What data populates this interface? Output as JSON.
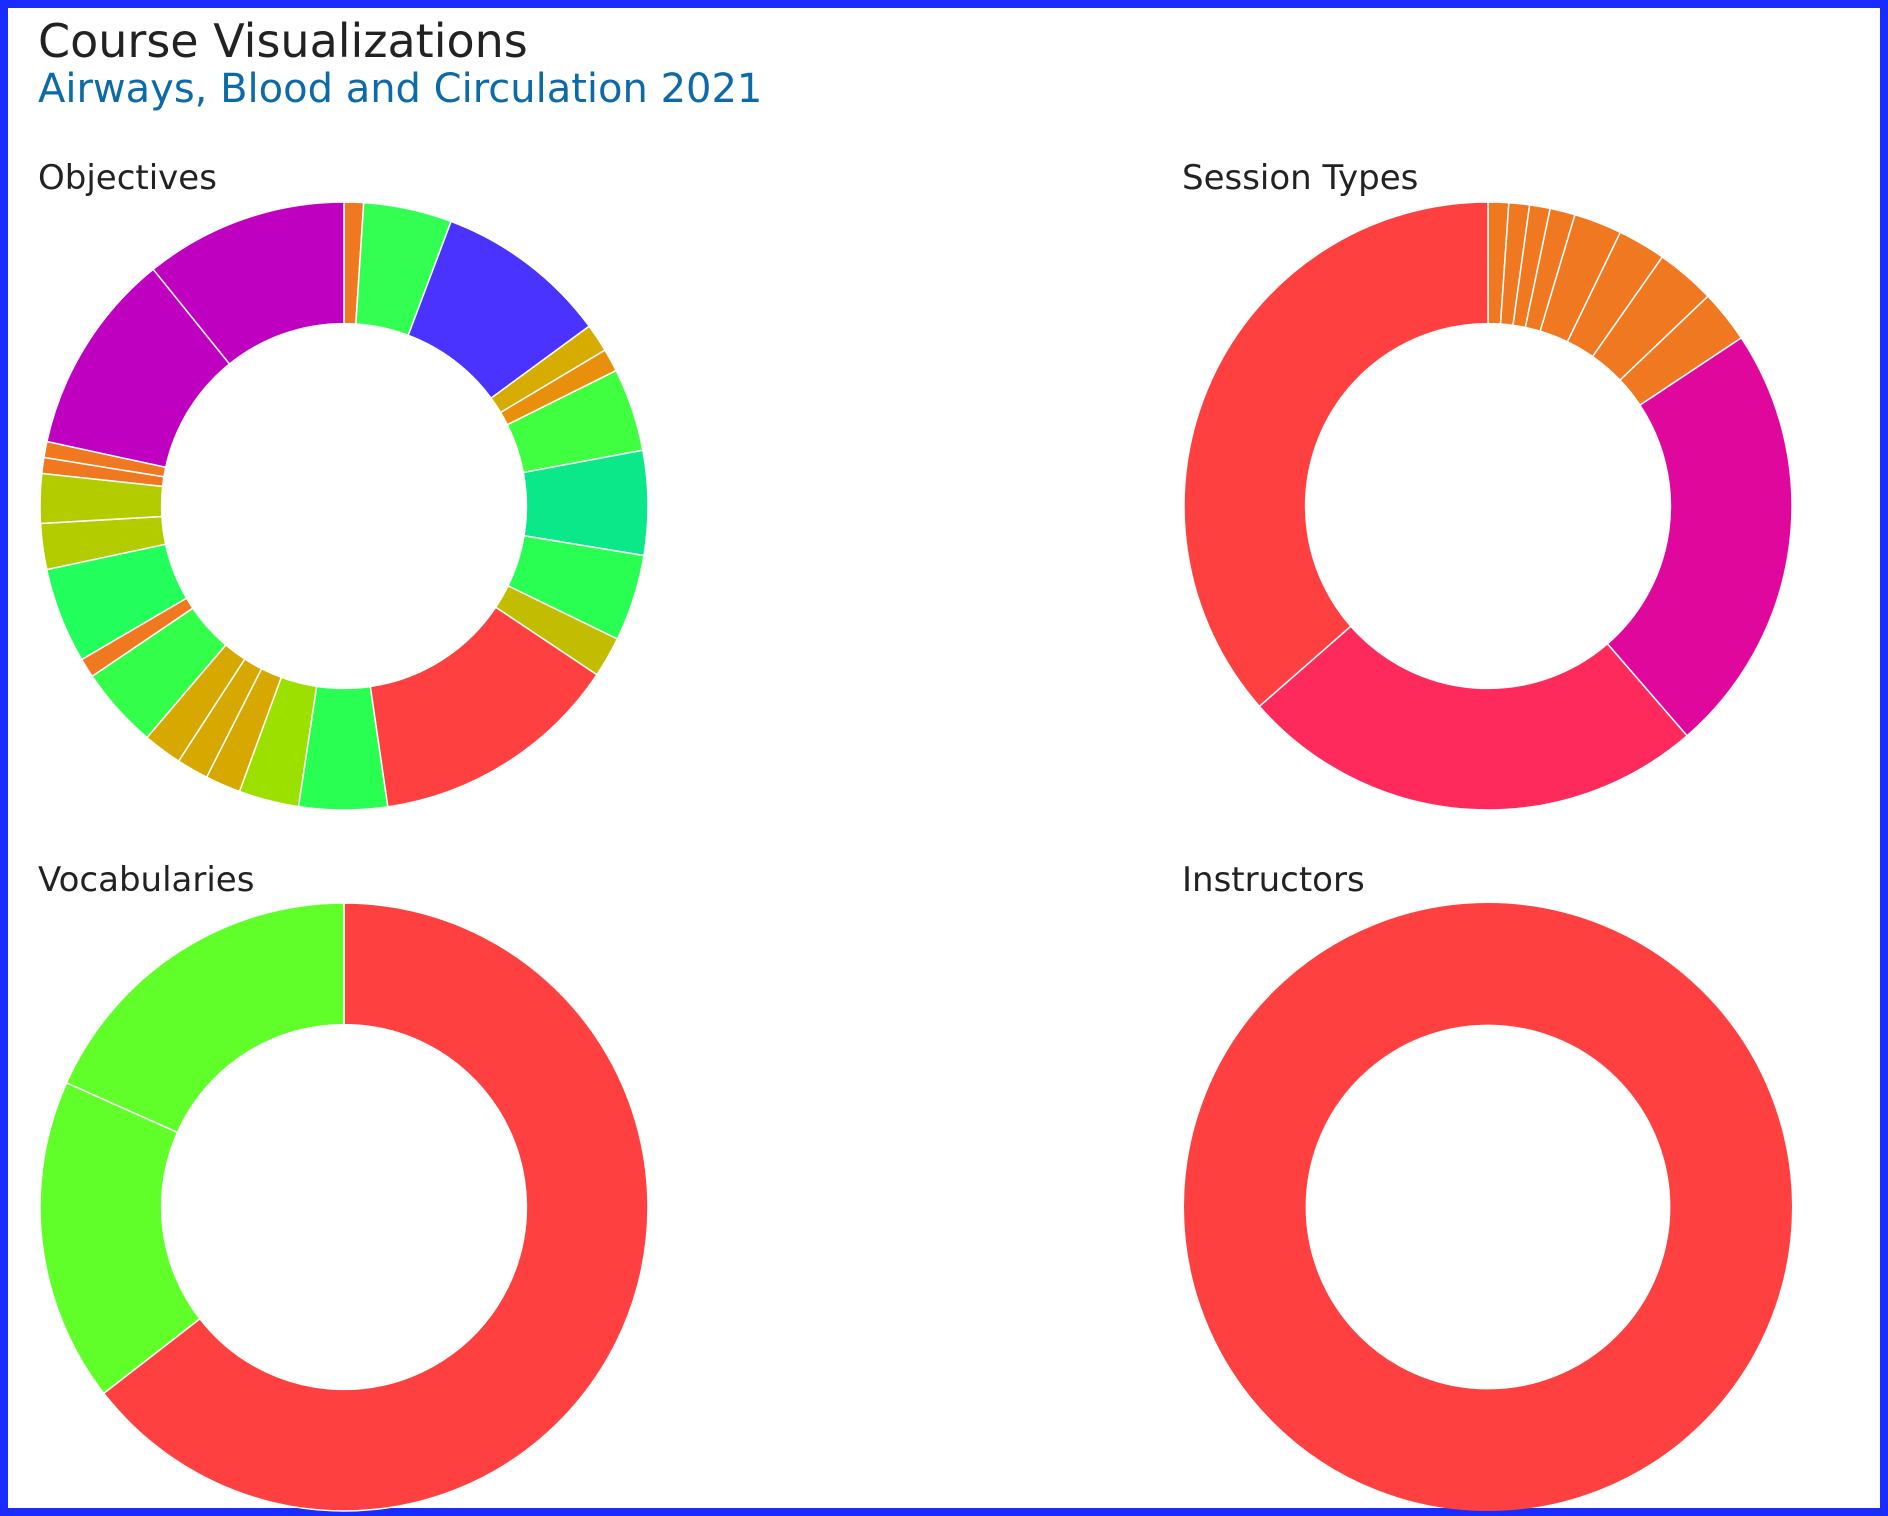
{
  "page": {
    "title": "Course Visualizations",
    "subtitle": "Airways, Blood and Circulation 2021"
  },
  "chart_data": [
    {
      "type": "pie",
      "title": "Objectives",
      "values": [
        1.1,
        5.0,
        9.8,
        1.6,
        1.3,
        4.7,
        5.9,
        4.9,
        2.3,
        14.2,
        5.0,
        3.4,
        2.0,
        1.8,
        2.2,
        4.6,
        1.1,
        5.4,
        2.6,
        2.8,
        0.9,
        0.9,
        11.5,
        11.5
      ],
      "colors": [
        "#f07820",
        "#33ff52",
        "#4a33ff",
        "#d6ac00",
        "#e8900c",
        "#40ff40",
        "#0ae88a",
        "#29ff52",
        "#c2bd00",
        "#ff4040",
        "#29ff52",
        "#9ce000",
        "#d6a800",
        "#d6a800",
        "#d6a800",
        "#33ff4a",
        "#f07820",
        "#22ff5c",
        "#b3cc00",
        "#b3cc00",
        "#f07820",
        "#f07820",
        "#c000c0",
        "#c000c0"
      ]
    },
    {
      "type": "pie",
      "title": "Session Types",
      "values": [
        0.9,
        0.9,
        0.9,
        1.1,
        2.1,
        2.1,
        2.6,
        2.3,
        18.9,
        20.5,
        30.0
      ],
      "colors": [
        "#f07820",
        "#f07820",
        "#f07820",
        "#f07820",
        "#f07820",
        "#f07820",
        "#f07820",
        "#f07820",
        "#e0089c",
        "#ff2a5c",
        "#ff4040"
      ]
    },
    {
      "type": "pie",
      "title": "Vocabularies",
      "values": [
        64.5,
        17.2,
        18.3
      ],
      "colors": [
        "#ff4040",
        "#60ff2a",
        "#60ff2a"
      ]
    },
    {
      "type": "pie",
      "title": "Instructors",
      "values": [
        100
      ],
      "colors": [
        "#ff4040"
      ]
    }
  ]
}
